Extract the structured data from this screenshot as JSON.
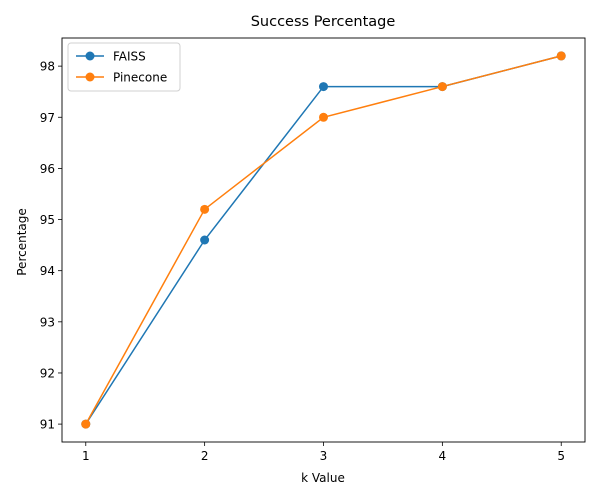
{
  "chart_data": {
    "type": "line",
    "title": "Success Percentage",
    "xlabel": "k Value",
    "ylabel": "Percentage",
    "x": [
      1,
      2,
      3,
      4,
      5
    ],
    "xticks": [
      "1",
      "2",
      "3",
      "4",
      "5"
    ],
    "yticks": [
      "91",
      "92",
      "93",
      "94",
      "95",
      "96",
      "97",
      "98"
    ],
    "xlim": [
      0.8,
      5.2
    ],
    "ylim": [
      90.65,
      98.55
    ],
    "grid": false,
    "legend_position": "top-left",
    "series": [
      {
        "name": "FAISS",
        "color": "#1f77b4",
        "values": [
          91.0,
          94.6,
          97.6,
          97.6,
          98.2
        ]
      },
      {
        "name": "Pinecone",
        "color": "#ff7f0e",
        "values": [
          91.0,
          95.2,
          97.0,
          97.6,
          98.2
        ]
      }
    ]
  }
}
